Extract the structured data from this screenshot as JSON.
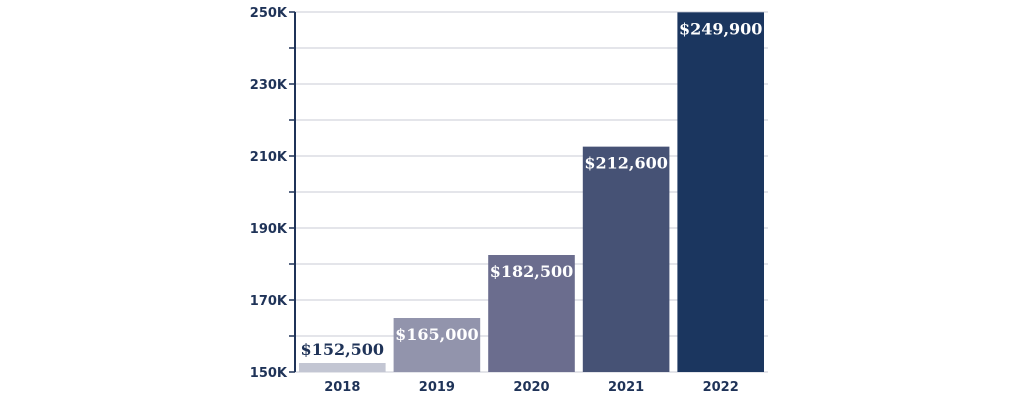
{
  "chart_data": {
    "type": "bar",
    "categories": [
      "2018",
      "2019",
      "2020",
      "2021",
      "2022"
    ],
    "values": [
      152500,
      165000,
      182500,
      212600,
      249900
    ],
    "value_labels": [
      "$152,500",
      "$165,000",
      "$182,500",
      "$212,600",
      "$249,900"
    ],
    "y_ticks": [
      150000,
      170000,
      190000,
      210000,
      230000,
      250000
    ],
    "y_tick_labels": [
      "150K",
      "170K",
      "190K",
      "210K",
      "230K",
      "250K"
    ],
    "ylim": [
      150000,
      250000
    ],
    "grid": true,
    "title": "",
    "xlabel": "",
    "ylabel": "",
    "colors": [
      "#c3c6d3",
      "#9294ac",
      "#6b6d8e",
      "#465275",
      "#1b365f"
    ],
    "label_colors": [
      "#1b365f",
      "#ffffff",
      "#ffffff",
      "#ffffff",
      "#ffffff"
    ],
    "axis_color": "#1f3358",
    "grid_color": "#c8cbd5"
  }
}
